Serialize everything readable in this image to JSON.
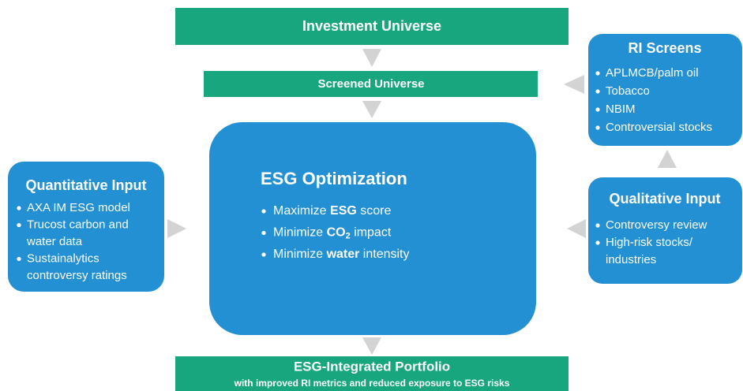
{
  "investment_universe": {
    "title": "Investment Universe"
  },
  "screened_universe": {
    "title": "Screened Universe"
  },
  "esg_optimization": {
    "title": "ESG Optimization",
    "bullets": [
      {
        "before": "Maximize ",
        "bold": "ESG",
        "after": " score"
      },
      {
        "before": "Minimize ",
        "bold": "CO",
        "sub": "2",
        "after": " impact"
      },
      {
        "before": "Minimize ",
        "bold": "water",
        "after": " intensity"
      }
    ]
  },
  "quantitative_input": {
    "title": "Quantitative Input",
    "bullets": [
      [
        "AXA IM ESG model"
      ],
      [
        "Trucost carbon and",
        "water data"
      ],
      [
        "Sustainalytics",
        "controversy ratings"
      ]
    ]
  },
  "ri_screens": {
    "title": "RI Screens",
    "bullets": [
      [
        "APLMCB/palm oil"
      ],
      [
        "Tobacco"
      ],
      [
        "NBIM"
      ],
      [
        "Controversial stocks"
      ]
    ]
  },
  "qualitative_input": {
    "title": "Qualitative Input",
    "bullets": [
      [
        "Controversy review"
      ],
      [
        "High-risk stocks/",
        "industries"
      ]
    ]
  },
  "portfolio": {
    "title": "ESG-Integrated Portfolio",
    "subtitle": "with improved RI metrics and reduced exposure to ESG risks"
  }
}
